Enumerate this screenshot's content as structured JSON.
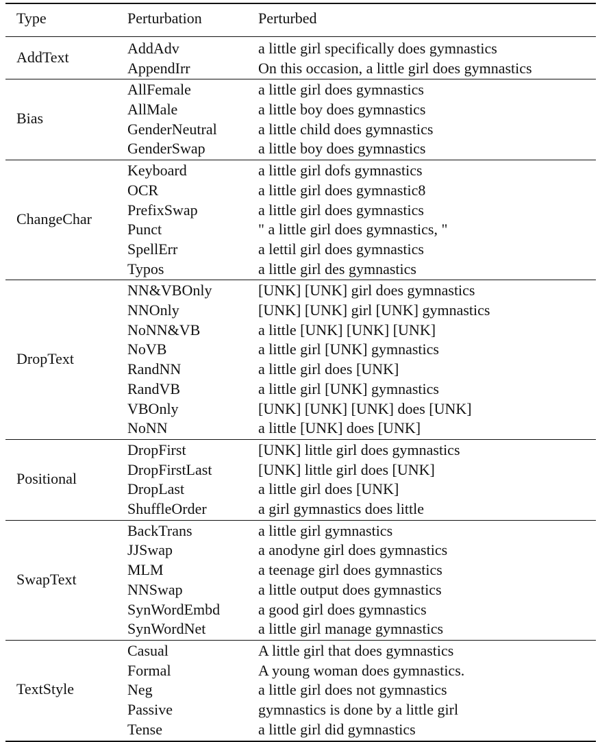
{
  "table": {
    "headers": {
      "type": "Type",
      "perturbation": "Perturbation",
      "perturbed": "Perturbed"
    },
    "groups": [
      {
        "type": "AddText",
        "rows": [
          {
            "perturbation": "AddAdv",
            "perturbed": "a little girl specifically does gymnastics"
          },
          {
            "perturbation": "AppendIrr",
            "perturbed": "On this occasion, a little girl does gymnastics"
          }
        ]
      },
      {
        "type": "Bias",
        "rows": [
          {
            "perturbation": "AllFemale",
            "perturbed": "a little girl does gymnastics"
          },
          {
            "perturbation": "AllMale",
            "perturbed": "a little boy does gymnastics"
          },
          {
            "perturbation": "GenderNeutral",
            "perturbed": "a little child does gymnastics"
          },
          {
            "perturbation": "GenderSwap",
            "perturbed": "a little boy does gymnastics"
          }
        ]
      },
      {
        "type": "ChangeChar",
        "rows": [
          {
            "perturbation": "Keyboard",
            "perturbed": "a little girl dofs gymnastics"
          },
          {
            "perturbation": "OCR",
            "perturbed": "a little girl does gymnastic8"
          },
          {
            "perturbation": "PrefixSwap",
            "perturbed": "a little girl does gymnastics"
          },
          {
            "perturbation": "Punct",
            "perturbed": "\" a little girl does gymnastics, \""
          },
          {
            "perturbation": "SpellErr",
            "perturbed": "a lettil girl does gymnastics"
          },
          {
            "perturbation": "Typos",
            "perturbed": "a little girl des gymnastics"
          }
        ]
      },
      {
        "type": "DropText",
        "rows": [
          {
            "perturbation": "NN&VBOnly",
            "perturbed": "[UNK] [UNK] girl does gymnastics"
          },
          {
            "perturbation": "NNOnly",
            "perturbed": "[UNK] [UNK] girl [UNK] gymnastics"
          },
          {
            "perturbation": "NoNN&VB",
            "perturbed": "a little [UNK] [UNK] [UNK]"
          },
          {
            "perturbation": "NoVB",
            "perturbed": "a little girl [UNK] gymnastics"
          },
          {
            "perturbation": "RandNN",
            "perturbed": "a little girl does [UNK]"
          },
          {
            "perturbation": "RandVB",
            "perturbed": "a little girl [UNK] gymnastics"
          },
          {
            "perturbation": "VBOnly",
            "perturbed": "[UNK] [UNK] [UNK] does [UNK]"
          },
          {
            "perturbation": "NoNN",
            "perturbed": "a little [UNK] does [UNK]"
          }
        ]
      },
      {
        "type": "Positional",
        "rows": [
          {
            "perturbation": "DropFirst",
            "perturbed": "[UNK] little girl does gymnastics"
          },
          {
            "perturbation": "DropFirstLast",
            "perturbed": "[UNK] little girl does [UNK]"
          },
          {
            "perturbation": "DropLast",
            "perturbed": "a little girl does [UNK]"
          },
          {
            "perturbation": "ShuffleOrder",
            "perturbed": "a girl gymnastics does little"
          }
        ]
      },
      {
        "type": "SwapText",
        "rows": [
          {
            "perturbation": "BackTrans",
            "perturbed": "a little girl gymnastics"
          },
          {
            "perturbation": "JJSwap",
            "perturbed": "a anodyne girl does gymnastics"
          },
          {
            "perturbation": "MLM",
            "perturbed": "a teenage girl does gymnastics"
          },
          {
            "perturbation": "NNSwap",
            "perturbed": "a little output does gymnastics"
          },
          {
            "perturbation": "SynWordEmbd",
            "perturbed": "a good girl does gymnastics"
          },
          {
            "perturbation": "SynWordNet",
            "perturbed": "a little girl manage gymnastics"
          }
        ]
      },
      {
        "type": "TextStyle",
        "rows": [
          {
            "perturbation": "Casual",
            "perturbed": "A little girl that does gymnastics"
          },
          {
            "perturbation": "Formal",
            "perturbed": "A young woman does gymnastics."
          },
          {
            "perturbation": "Neg",
            "perturbed": "a little girl does not gymnastics"
          },
          {
            "perturbation": "Passive",
            "perturbed": "gymnastics is done by a little girl"
          },
          {
            "perturbation": "Tense",
            "perturbed": "a little girl did gymnastics"
          }
        ]
      }
    ]
  }
}
